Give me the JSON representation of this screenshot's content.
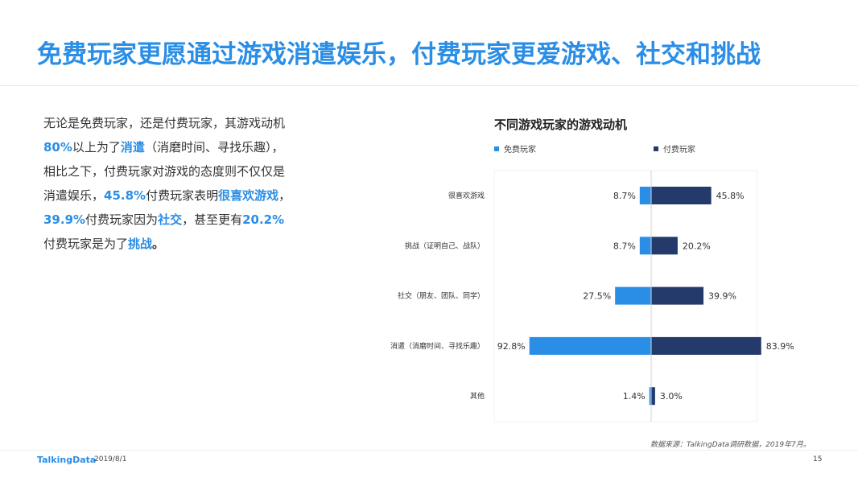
{
  "page": {
    "title": "免费玩家更愿通过游戏消遣娱乐，付费玩家更爱游戏、社交和挑战",
    "body_segments": [
      {
        "text": "无论是免费玩家，还是付费玩家，其游戏动机",
        "style": "normal"
      },
      {
        "text": "80%",
        "style": "hl"
      },
      {
        "text": "以上为了",
        "style": "normal"
      },
      {
        "text": "消遣",
        "style": "hl"
      },
      {
        "text": "（消磨时间、寻找乐趣），相比之下，付费玩家对游戏的态度则不仅仅是消遣娱乐，",
        "style": "normal"
      },
      {
        "text": "45.8%",
        "style": "hl"
      },
      {
        "text": "付费玩家表明",
        "style": "normal"
      },
      {
        "text": "很喜欢游戏",
        "style": "hl"
      },
      {
        "text": "，",
        "style": "normal"
      },
      {
        "text": "39.9%",
        "style": "hl"
      },
      {
        "text": "付费玩家因为",
        "style": "normal"
      },
      {
        "text": "社交",
        "style": "hl"
      },
      {
        "text": "，甚至更有",
        "style": "normal"
      },
      {
        "text": "20.2%",
        "style": "hl"
      },
      {
        "text": "付费玩家是为了",
        "style": "normal"
      },
      {
        "text": "挑战",
        "style": "hl"
      },
      {
        "text": "。",
        "style": "strong"
      }
    ],
    "source": "数据来源：TalkingData调研数据，2019年7月。",
    "footer": {
      "logo": "TalkingData",
      "date": "2019/8/1",
      "page_number": "15"
    }
  },
  "chart_data": {
    "type": "bar",
    "orientation": "horizontal-diverging",
    "title": "不同游戏玩家的游戏动机",
    "categories": [
      "很喜欢游戏",
      "挑战（证明自己、战队）",
      "社交（朋友、团队、同学）",
      "消遣（消磨时间、寻找乐趣）",
      "其他"
    ],
    "series": [
      {
        "name": "免费玩家",
        "values": [
          8.7,
          8.7,
          27.5,
          92.8,
          1.4
        ],
        "color": "#2a8ee6",
        "side": "left"
      },
      {
        "name": "付费玩家",
        "values": [
          45.8,
          20.2,
          39.9,
          83.9,
          3.0
        ],
        "color": "#243a6b",
        "side": "right"
      }
    ],
    "value_suffix": "%",
    "legend_position": "top-left",
    "grid": false
  }
}
